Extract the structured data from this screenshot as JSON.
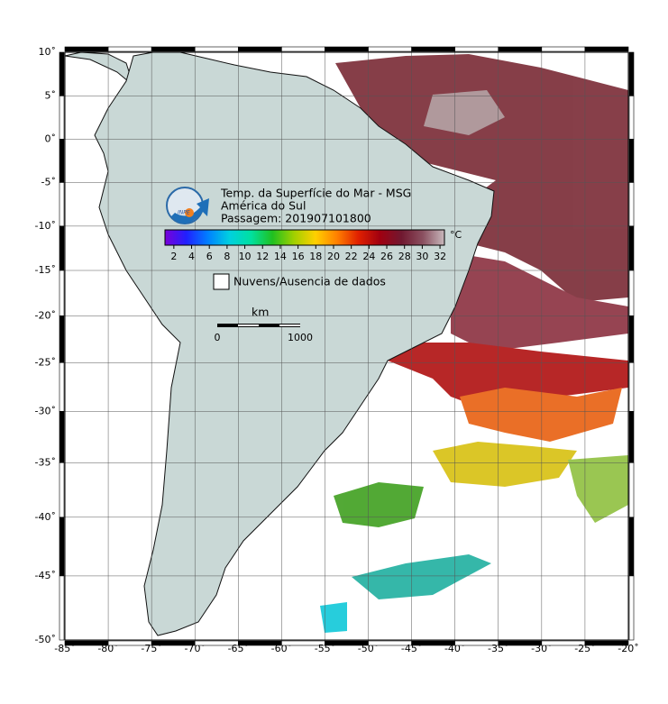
{
  "map": {
    "lon_ticks": [
      {
        "value": -85,
        "label": "-85˚"
      },
      {
        "value": -80,
        "label": "-80˚"
      },
      {
        "value": -75,
        "label": "-75˚"
      },
      {
        "value": -70,
        "label": "-70˚"
      },
      {
        "value": -65,
        "label": "-65˚"
      },
      {
        "value": -60,
        "label": "-60˚"
      },
      {
        "value": -55,
        "label": "-55˚"
      },
      {
        "value": -50,
        "label": "-50˚"
      },
      {
        "value": -45,
        "label": "-45˚"
      },
      {
        "value": -40,
        "label": "-40˚"
      },
      {
        "value": -35,
        "label": "-35˚"
      },
      {
        "value": -30,
        "label": "-30˚"
      },
      {
        "value": -25,
        "label": "-25˚"
      },
      {
        "value": -20,
        "label": "-20˚"
      }
    ],
    "lat_ticks": [
      {
        "value": 10,
        "label": "10˚"
      },
      {
        "value": 5,
        "label": "5˚"
      },
      {
        "value": 0,
        "label": "0˚"
      },
      {
        "value": -5,
        "label": "-5˚"
      },
      {
        "value": -10,
        "label": "-10˚"
      },
      {
        "value": -15,
        "label": "-15˚"
      },
      {
        "value": -20,
        "label": "-20˚"
      },
      {
        "value": -25,
        "label": "-25˚"
      },
      {
        "value": -30,
        "label": "-30˚"
      },
      {
        "value": -35,
        "label": "-35˚"
      },
      {
        "value": -40,
        "label": "-40˚"
      },
      {
        "value": -45,
        "label": "-45˚"
      },
      {
        "value": -50,
        "label": "-50˚"
      }
    ],
    "lonlim": [
      -85,
      -20
    ],
    "latlim": [
      10,
      -50
    ],
    "projection": "mercator",
    "grid": true
  },
  "legend": {
    "logo_text": "INPE",
    "title_lines": [
      "Temp. da Superfície do Mar - MSG",
      "América do Sul",
      "Passagem: 201907101800"
    ],
    "colorbar": {
      "range": [
        1,
        32.5
      ],
      "ticks": [
        2,
        4,
        6,
        8,
        10,
        12,
        14,
        16,
        18,
        20,
        22,
        24,
        26,
        28,
        30,
        32
      ],
      "unit": "°C",
      "colors": [
        "#7a00d9",
        "#2020ff",
        "#0080ff",
        "#00d0e0",
        "#00e0a0",
        "#20c020",
        "#a0d000",
        "#ffd000",
        "#ff8000",
        "#e02000",
        "#a00010",
        "#701830",
        "#8a5060",
        "#c8b8bc"
      ]
    },
    "no_data_label": "Nuvens/Ausencia de dados",
    "scale_bar": {
      "unit": "km",
      "labels": [
        0,
        1000
      ]
    }
  }
}
